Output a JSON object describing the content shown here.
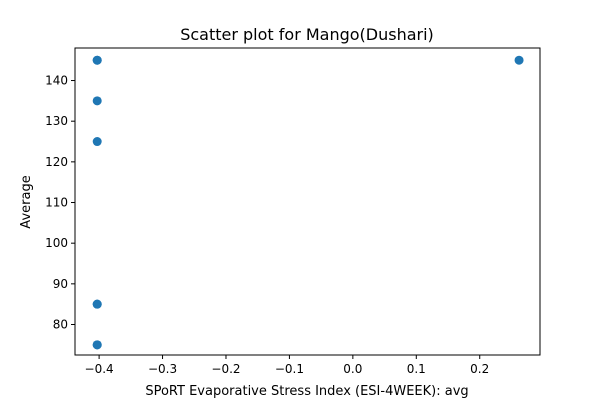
{
  "chart_data": {
    "type": "scatter",
    "title": "Scatter plot for Mango(Dushari)",
    "xlabel": "SPoRT Evaporative Stress Index (ESI-4WEEK): avg",
    "ylabel": "Average",
    "xlim": [
      -0.438,
      0.295
    ],
    "ylim": [
      72.5,
      148.0
    ],
    "xticks": [
      -0.4,
      -0.3,
      -0.2,
      -0.1,
      0.0,
      0.1,
      0.2
    ],
    "xtick_labels": [
      "−0.4",
      "−0.3",
      "−0.2",
      "−0.1",
      "0.0",
      "0.1",
      "0.2"
    ],
    "yticks": [
      80,
      90,
      100,
      110,
      120,
      130,
      140
    ],
    "ytick_labels": [
      "80",
      "90",
      "100",
      "110",
      "120",
      "130",
      "140"
    ],
    "grid": false,
    "marker_color": "#1f77b4",
    "points": [
      {
        "x": -0.403,
        "y": 145
      },
      {
        "x": -0.403,
        "y": 145
      },
      {
        "x": -0.403,
        "y": 135
      },
      {
        "x": -0.403,
        "y": 125
      },
      {
        "x": -0.403,
        "y": 85
      },
      {
        "x": -0.403,
        "y": 85
      },
      {
        "x": -0.403,
        "y": 75
      },
      {
        "x": -0.403,
        "y": 75
      },
      {
        "x": 0.262,
        "y": 145
      }
    ]
  }
}
